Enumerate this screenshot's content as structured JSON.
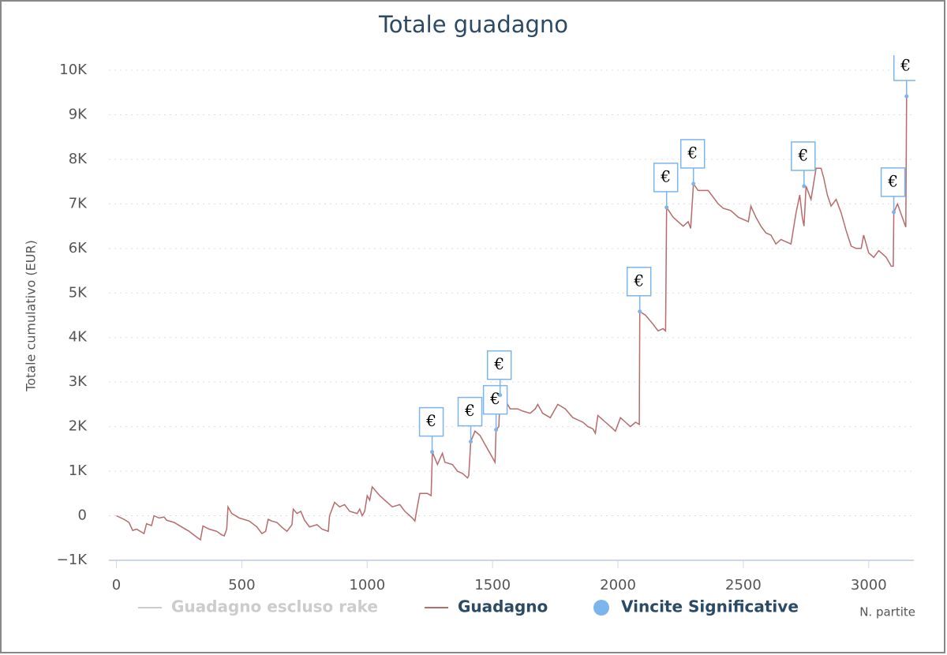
{
  "chart_data": {
    "type": "line",
    "title": "Totale guadagno",
    "y_label": "Totale cumulativo (EUR)",
    "x_label": "N. partite",
    "xlim": [
      -30,
      3180
    ],
    "xticks": [
      0,
      500,
      1000,
      1500,
      2000,
      2500,
      3000
    ],
    "ylim": [
      -1000,
      10000
    ],
    "yticks": [
      {
        "value": -1000,
        "label": "−1K"
      },
      0,
      {
        "value": 1000,
        "label": "1K"
      },
      {
        "value": 2000,
        "label": "2K"
      },
      {
        "value": 3000,
        "label": "3K"
      },
      {
        "value": 4000,
        "label": "4K"
      },
      {
        "value": 5000,
        "label": "5K"
      },
      {
        "value": 6000,
        "label": "6K"
      },
      {
        "value": 7000,
        "label": "7K"
      },
      {
        "value": 8000,
        "label": "8K"
      },
      {
        "value": 9000,
        "label": "9K"
      },
      {
        "value": 10000,
        "label": "10K"
      }
    ],
    "grid": true,
    "series": [
      {
        "name": "Guadagno escluso rake",
        "color": "#cccccc",
        "visible": false
      },
      {
        "name": "Guadagno",
        "type": "line",
        "color": "#b76b6b",
        "x": [
          0,
          30,
          50,
          65,
          80,
          110,
          120,
          140,
          150,
          170,
          190,
          200,
          230,
          260,
          290,
          320,
          335,
          345,
          370,
          400,
          420,
          430,
          440,
          445,
          460,
          490,
          530,
          560,
          580,
          595,
          605,
          620,
          640,
          660,
          680,
          700,
          705,
          720,
          735,
          750,
          770,
          800,
          820,
          845,
          850,
          870,
          890,
          910,
          930,
          960,
          970,
          980,
          990,
          1000,
          1010,
          1020,
          1050,
          1080,
          1100,
          1130,
          1150,
          1180,
          1190,
          1200,
          1210,
          1240,
          1255,
          1260,
          1280,
          1300,
          1310,
          1340,
          1360,
          1380,
          1400,
          1405,
          1413,
          1430,
          1450,
          1470,
          1490,
          1510,
          1514,
          1525,
          1530,
          1550,
          1570,
          1600,
          1620,
          1650,
          1670,
          1680,
          1700,
          1730,
          1760,
          1790,
          1820,
          1860,
          1880,
          1900,
          1910,
          1920,
          1950,
          1970,
          1990,
          2010,
          2030,
          2050,
          2070,
          2085,
          2087,
          2110,
          2140,
          2160,
          2180,
          2190,
          2194,
          2220,
          2240,
          2260,
          2280,
          2290,
          2301,
          2320,
          2360,
          2380,
          2400,
          2420,
          2450,
          2480,
          2500,
          2520,
          2530,
          2550,
          2570,
          2590,
          2610,
          2630,
          2650,
          2670,
          2690,
          2710,
          2725,
          2735,
          2742,
          2750,
          2770,
          2790,
          2810,
          2820,
          2835,
          2850,
          2870,
          2890,
          2910,
          2930,
          2950,
          2970,
          2980,
          3000,
          3020,
          3040,
          3070,
          3090,
          3098,
          3100,
          3115,
          3140,
          3148,
          3151
        ],
        "values": [
          0,
          -80,
          -150,
          -330,
          -300,
          -400,
          -180,
          -220,
          0,
          -50,
          -30,
          -100,
          -150,
          -250,
          -350,
          -480,
          -540,
          -230,
          -300,
          -350,
          -430,
          -450,
          -300,
          200,
          50,
          -50,
          -120,
          -250,
          -400,
          -350,
          -80,
          -120,
          -150,
          -260,
          -350,
          -200,
          150,
          50,
          100,
          -100,
          -250,
          -200,
          -300,
          -350,
          0,
          300,
          200,
          250,
          100,
          50,
          150,
          0,
          100,
          450,
          350,
          650,
          450,
          300,
          200,
          250,
          100,
          -50,
          -120,
          200,
          500,
          500,
          450,
          1430,
          1150,
          1400,
          1200,
          1150,
          1000,
          950,
          850,
          900,
          1664,
          1900,
          1800,
          1600,
          1400,
          1200,
          1929,
          2000,
          2708,
          2600,
          2400,
          2400,
          2350,
          2300,
          2400,
          2500,
          2300,
          2200,
          2500,
          2400,
          2200,
          2100,
          2000,
          1950,
          1850,
          2250,
          2100,
          2000,
          1900,
          2200,
          2100,
          2000,
          2100,
          2050,
          4584,
          4500,
          4300,
          4150,
          4200,
          4150,
          6920,
          6700,
          6600,
          6500,
          6600,
          6450,
          7451,
          7300,
          7300,
          7150,
          7000,
          6900,
          6850,
          6700,
          6650,
          6600,
          6950,
          6700,
          6500,
          6350,
          6300,
          6100,
          6200,
          6150,
          6100,
          6800,
          7200,
          6700,
          6500,
          7398,
          7100,
          7800,
          7800,
          7600,
          7200,
          6950,
          7100,
          6800,
          6400,
          6050,
          6000,
          6000,
          6300,
          5900,
          5800,
          5950,
          5800,
          5600,
          5600,
          6814,
          7000,
          6600,
          6480,
          9416
        ]
      },
      {
        "name": "Vincite Significative",
        "type": "flags",
        "color": "#7cb5ec",
        "x": [
          1259,
          1413,
          1514,
          1530,
          2087,
          2194,
          2301,
          2742,
          3100,
          3151
        ],
        "values": [
          1434,
          1664,
          1929,
          2708,
          4584,
          6920,
          7451,
          7398,
          6814,
          9416
        ],
        "labels": [
          "€",
          "€",
          "€",
          "€",
          "€",
          "€",
          "€",
          "€",
          "€",
          "€"
        ]
      }
    ]
  }
}
